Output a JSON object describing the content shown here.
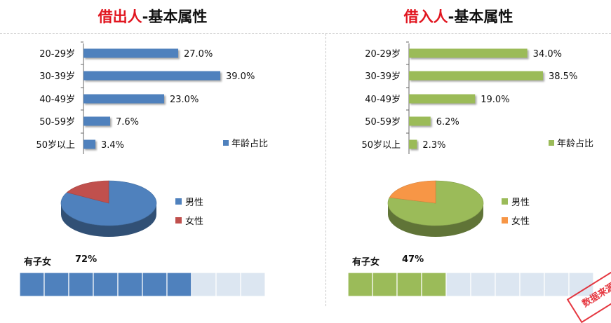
{
  "panels": [
    {
      "title_highlight": "借出人",
      "title_rest": "-基本属性",
      "kids_label": "有子女",
      "kids_value": "72%"
    },
    {
      "title_highlight": "借入人",
      "title_rest": "-基本属性",
      "kids_label": "有子女",
      "kids_value": "47%"
    }
  ],
  "stamp_text": "数据来源",
  "colors": {
    "title_red": "#e1151f",
    "lender_blue": "#4f81bd",
    "lender_red": "#c0504d",
    "borrower_green": "#9bbb59",
    "borrower_orange": "#f79646",
    "empty_cell": "#dce6f1"
  },
  "chart_data": [
    {
      "type": "bar",
      "orientation": "horizontal",
      "categories": [
        "20-29岁",
        "30-39岁",
        "40-49岁",
        "50-59岁",
        "50岁以上"
      ],
      "values": [
        27.0,
        39.0,
        23.0,
        7.6,
        3.4
      ],
      "labels": [
        "27.0%",
        "39.0%",
        "23.0%",
        "7.6%",
        "3.4%"
      ],
      "series": [
        {
          "name": "年龄占比",
          "color": "#4f81bd"
        }
      ],
      "legend": "right",
      "xlim": [
        0,
        40
      ]
    },
    {
      "type": "bar",
      "orientation": "horizontal",
      "categories": [
        "20-29岁",
        "30-39岁",
        "40-49岁",
        "50-59岁",
        "50岁以上"
      ],
      "values": [
        34.0,
        38.5,
        19.0,
        6.2,
        2.3
      ],
      "labels": [
        "34.0%",
        "38.5%",
        "19.0%",
        "6.2%",
        "2.3%"
      ],
      "series": [
        {
          "name": "年龄占比",
          "color": "#9bbb59"
        }
      ],
      "legend": "right",
      "xlim": [
        0,
        40
      ]
    },
    {
      "type": "pie",
      "style": "3d",
      "categories": [
        "男性",
        "女性"
      ],
      "values": [
        83,
        17
      ],
      "colors": [
        "#4f81bd",
        "#c0504d"
      ],
      "legend": "right"
    },
    {
      "type": "pie",
      "style": "3d",
      "categories": [
        "男性",
        "女性"
      ],
      "values": [
        79,
        21
      ],
      "colors": [
        "#9bbb59",
        "#f79646"
      ],
      "legend": "right"
    },
    {
      "type": "bar",
      "style": "segmented-progress",
      "label": "有子女",
      "value": 72,
      "filled_cells": 7,
      "total_cells": 10,
      "color": "#4f81bd"
    },
    {
      "type": "bar",
      "style": "segmented-progress",
      "label": "有子女",
      "value": 47,
      "filled_cells": 4,
      "total_cells": 10,
      "color": "#9bbb59"
    }
  ]
}
